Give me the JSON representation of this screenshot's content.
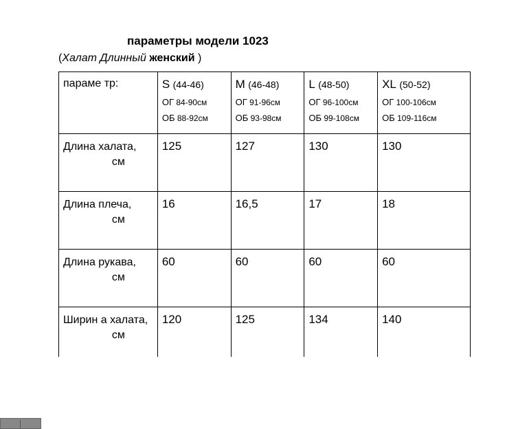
{
  "title": "параметры модели 1023",
  "subtitle_prefix": "(",
  "subtitle_italic": "Халат Длинный ",
  "subtitle_bold": "женский",
  "subtitle_suffix": " )",
  "table": {
    "header_param": "параме тр:",
    "sizes": [
      {
        "letter": "S",
        "range": "(44-46)",
        "og_label": "ОГ",
        "og": "84-90см",
        "ob_label": "ОБ",
        "ob": "88-92см"
      },
      {
        "letter": "M",
        "range": "(46-48)",
        "og_label": "ОГ",
        "og": "91-96см",
        "ob_label": "ОБ",
        "ob": "93-98см"
      },
      {
        "letter": "L",
        "range": "(48-50)",
        "og_label": "ОГ",
        "og": "96-100см",
        "ob_label": "ОБ",
        "ob": "99-108см"
      },
      {
        "letter": "XL",
        "range": "(50-52)",
        "og_label": "ОГ",
        "og": "100-106см",
        "ob_label": "ОБ",
        "ob": "109-116см"
      }
    ],
    "rows": [
      {
        "name": "Длина  халата,",
        "unit": "см",
        "values": [
          "125",
          "127",
          "130",
          "130"
        ]
      },
      {
        "name": "Длина  плеча,",
        "unit": "см",
        "values": [
          "16",
          "16,5",
          "17",
          "18"
        ]
      },
      {
        "name": "Длина  рукава,",
        "unit": "см",
        "values": [
          "60",
          "60",
          "60",
          "60"
        ]
      },
      {
        "name": "Ширин а  халата,",
        "unit": "см",
        "values": [
          "120",
          "125",
          "134",
          "140"
        ]
      }
    ]
  }
}
